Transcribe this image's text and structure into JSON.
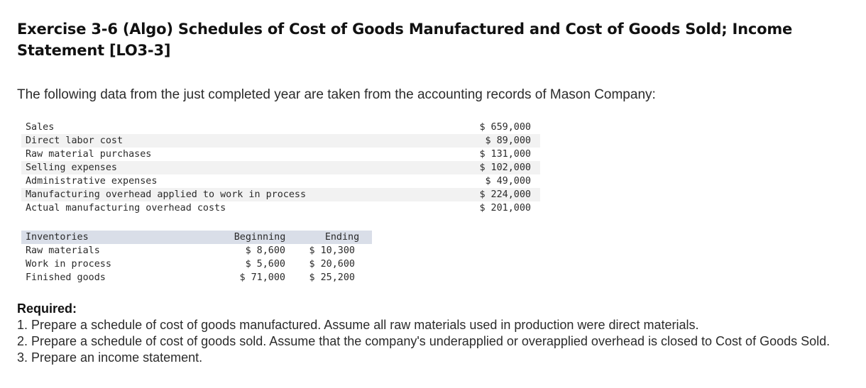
{
  "title": "Exercise 3-6 (Algo) Schedules of Cost of Goods Manufactured and Cost of Goods Sold; Income Statement [LO3-3]",
  "intro": "The following data from the just completed year are taken from the accounting records of Mason Company:",
  "data_rows": [
    {
      "label": "Sales",
      "amount": "$ 659,000"
    },
    {
      "label": "Direct labor cost",
      "amount": "$ 89,000"
    },
    {
      "label": "Raw material purchases",
      "amount": "$ 131,000"
    },
    {
      "label": "Selling expenses",
      "amount": "$ 102,000"
    },
    {
      "label": "Administrative expenses",
      "amount": "$ 49,000"
    },
    {
      "label": "Manufacturing overhead applied to work in process",
      "amount": "$ 224,000"
    },
    {
      "label": "Actual manufacturing overhead costs",
      "amount": "$ 201,000"
    }
  ],
  "inventories": {
    "header": {
      "label": "Inventories",
      "beginning": "Beginning",
      "ending": "Ending"
    },
    "rows": [
      {
        "label": "Raw materials",
        "beginning": "$ 8,600",
        "ending": "$ 10,300"
      },
      {
        "label": "Work in process",
        "beginning": "$ 5,600",
        "ending": "$ 20,600"
      },
      {
        "label": "Finished goods",
        "beginning": "$ 71,000",
        "ending": "$ 25,200"
      }
    ]
  },
  "required": {
    "label": "Required:",
    "items": [
      "1. Prepare a schedule of cost of goods manufactured. Assume all raw materials used in production were direct materials.",
      "2. Prepare a schedule of cost of goods sold. Assume that the company's underapplied or overapplied overhead is closed to Cost of Goods Sold.",
      "3. Prepare an income statement."
    ]
  }
}
